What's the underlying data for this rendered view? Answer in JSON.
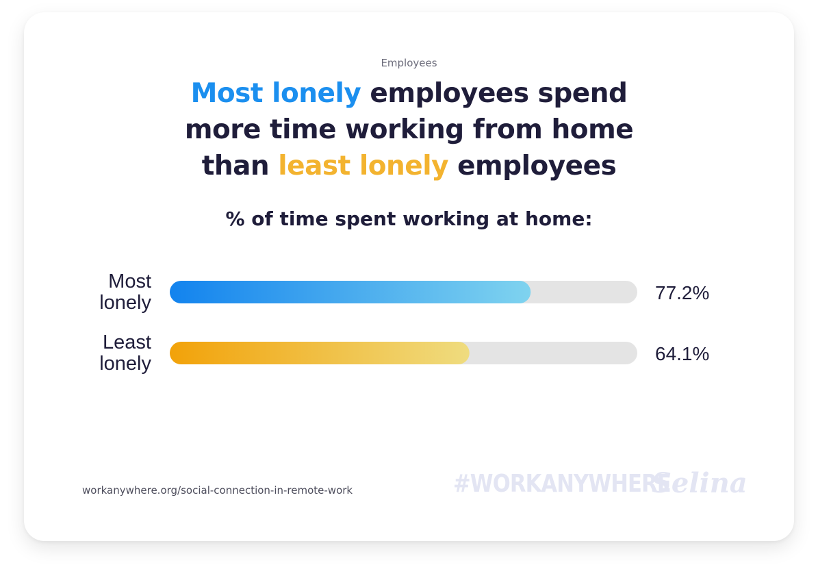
{
  "kicker": "Employees",
  "headline": {
    "part1": "Most lonely",
    "part2": " employees spend",
    "part3": "more time working from home",
    "part4": "than ",
    "part5": "least lonely",
    "part6": " employees"
  },
  "subtitle": "% of time spent working at home:",
  "chart_data": {
    "type": "bar",
    "orientation": "horizontal",
    "categories": [
      [
        "Most",
        "lonely"
      ],
      [
        "Least",
        "lonely"
      ]
    ],
    "values": [
      77.2,
      64.1
    ],
    "value_labels": [
      "77.2%",
      "64.1%"
    ],
    "xlim": [
      0,
      100
    ],
    "grid": false,
    "title": "% of time spent working at home:",
    "xlabel": "",
    "ylabel": ""
  },
  "colors": {
    "most_lonely_gradient": [
      "#1283ee",
      "#7fd3ef"
    ],
    "least_lonely_gradient": [
      "#f2a209",
      "#efdc7f"
    ],
    "track": "#e4e4e4",
    "text": "#1f1d3a"
  },
  "footer": {
    "source": "workanywhere.org/social-connection-in-remote-work",
    "hashtag": "#WORKANYWHERE",
    "brand": "Selina"
  }
}
